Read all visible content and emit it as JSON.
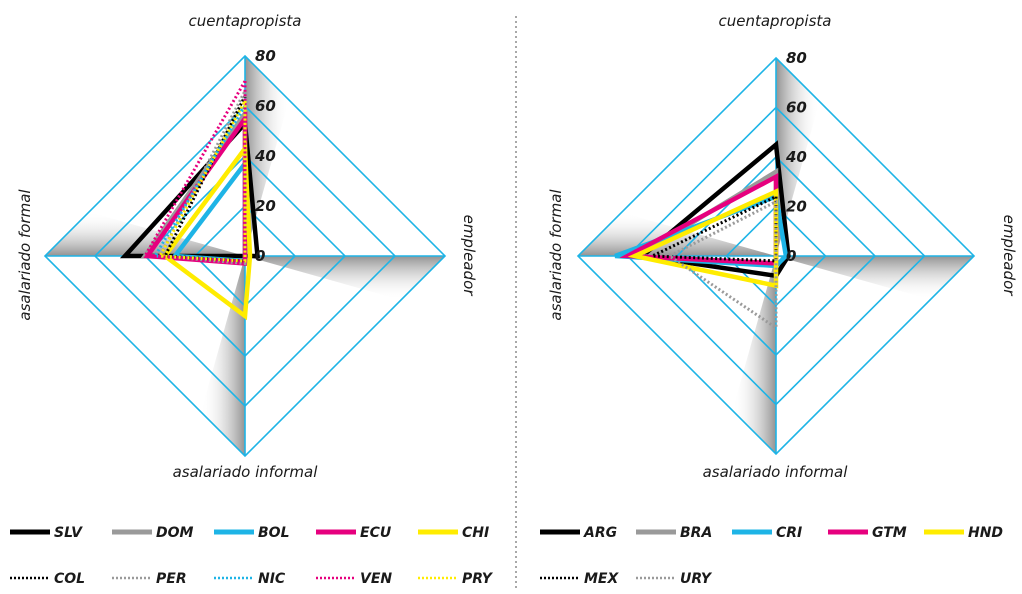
{
  "chart_data": [
    {
      "type": "radar",
      "axes": [
        "cuentapropista",
        "empleador",
        "asalariado informal",
        "asalariado formal"
      ],
      "range": [
        0,
        80
      ],
      "ticks": [
        "0",
        "20",
        "40",
        "60",
        "80"
      ],
      "series": [
        {
          "name": "SLV",
          "color": "#000000",
          "style": "solid",
          "values": [
            53,
            5,
            0,
            48
          ]
        },
        {
          "name": "DOM",
          "color": "#9a9a9a",
          "style": "solid",
          "values": [
            57,
            0,
            2,
            40
          ]
        },
        {
          "name": "BOL",
          "color": "#1eb4e6",
          "style": "solid",
          "values": [
            37,
            0,
            2,
            28
          ]
        },
        {
          "name": "ECU",
          "color": "#e6007e",
          "style": "solid",
          "values": [
            55,
            0,
            3,
            39
          ]
        },
        {
          "name": "CHI",
          "color": "#ffec00",
          "style": "solid",
          "values": [
            43,
            2,
            24,
            32
          ]
        },
        {
          "name": "COL",
          "color": "#000000",
          "style": "dotted",
          "values": [
            64,
            0,
            2,
            32
          ]
        },
        {
          "name": "PER",
          "color": "#9a9a9a",
          "style": "dotted",
          "values": [
            66,
            0,
            3,
            34
          ]
        },
        {
          "name": "NIC",
          "color": "#1eb4e6",
          "style": "dotted",
          "values": [
            60,
            0,
            2,
            36
          ]
        },
        {
          "name": "VEN",
          "color": "#e6007e",
          "style": "dotted",
          "values": [
            70,
            0,
            2,
            40
          ]
        },
        {
          "name": "PRY",
          "color": "#ffec00",
          "style": "dotted",
          "values": [
            62,
            0,
            2,
            34
          ]
        }
      ]
    },
    {
      "type": "radar",
      "axes": [
        "cuentapropista",
        "empleador",
        "asalariado informal",
        "asalariado formal"
      ],
      "range": [
        0,
        80
      ],
      "ticks": [
        "0",
        "20",
        "40",
        "60",
        "80"
      ],
      "series": [
        {
          "name": "ARG",
          "color": "#000000",
          "style": "solid",
          "values": [
            45,
            5,
            8,
            54
          ]
        },
        {
          "name": "BRA",
          "color": "#9a9a9a",
          "style": "solid",
          "values": [
            34,
            0,
            3,
            56
          ]
        },
        {
          "name": "CRI",
          "color": "#1eb4e6",
          "style": "solid",
          "values": [
            24,
            4,
            4,
            65
          ]
        },
        {
          "name": "GTM",
          "color": "#e6007e",
          "style": "solid",
          "values": [
            32,
            0,
            3,
            60
          ]
        },
        {
          "name": "HND",
          "color": "#ffec00",
          "style": "solid",
          "values": [
            26,
            0,
            12,
            57
          ]
        },
        {
          "name": "MEX",
          "color": "#000000",
          "style": "dotted",
          "values": [
            24,
            0,
            2,
            50
          ]
        },
        {
          "name": "URY",
          "color": "#9a9a9a",
          "style": "dotted",
          "values": [
            22,
            0,
            29,
            43
          ]
        }
      ]
    }
  ]
}
